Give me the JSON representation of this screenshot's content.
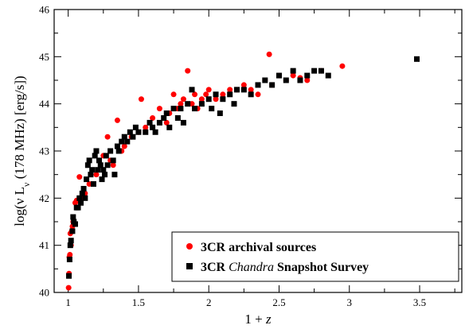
{
  "chart_data": {
    "type": "scatter",
    "xlabel": "1 + z",
    "ylabel": "log(ν L_ν (178 MHz) [erg/s])",
    "xlim": [
      0.9,
      3.8
    ],
    "ylim": [
      40,
      46
    ],
    "x_ticks": [
      1,
      1.5,
      2,
      2.5,
      3,
      3.5
    ],
    "x_tick_labels": [
      "1",
      "1.5",
      "2",
      "2.5",
      "3",
      "3.5"
    ],
    "y_ticks": [
      40,
      41,
      42,
      43,
      44,
      45,
      46
    ],
    "y_tick_labels": [
      "40",
      "41",
      "42",
      "43",
      "44",
      "45",
      "46"
    ],
    "grid": false,
    "legend": {
      "position": "bottom-right",
      "entries": [
        {
          "series": 0,
          "text": "3CR archival sources",
          "marker": "circle"
        },
        {
          "series": 1,
          "text_parts": [
            "3CR ",
            "Chandra",
            " Snapshot Survey"
          ],
          "italic_part": 1,
          "marker": "square"
        }
      ]
    },
    "series": [
      {
        "name": "3CR archival sources",
        "marker": "circle",
        "color": "#ff0000",
        "points": [
          [
            1.003,
            40.1
          ],
          [
            1.006,
            40.4
          ],
          [
            1.008,
            40.75
          ],
          [
            1.012,
            40.8
          ],
          [
            1.015,
            41.25
          ],
          [
            1.02,
            41.0
          ],
          [
            1.025,
            41.3
          ],
          [
            1.03,
            41.4
          ],
          [
            1.035,
            41.5
          ],
          [
            1.04,
            41.45
          ],
          [
            1.05,
            41.9
          ],
          [
            1.06,
            41.95
          ],
          [
            1.07,
            41.95
          ],
          [
            1.08,
            42.45
          ],
          [
            1.1,
            42.0
          ],
          [
            1.12,
            42.1
          ],
          [
            1.15,
            42.3
          ],
          [
            1.2,
            42.5
          ],
          [
            1.25,
            42.9
          ],
          [
            1.28,
            43.3
          ],
          [
            1.3,
            42.8
          ],
          [
            1.32,
            42.7
          ],
          [
            1.35,
            43.65
          ],
          [
            1.38,
            43.0
          ],
          [
            1.4,
            43.1
          ],
          [
            1.45,
            43.3
          ],
          [
            1.5,
            43.4
          ],
          [
            1.52,
            44.1
          ],
          [
            1.55,
            43.5
          ],
          [
            1.6,
            43.7
          ],
          [
            1.65,
            43.9
          ],
          [
            1.7,
            43.6
          ],
          [
            1.72,
            43.8
          ],
          [
            1.75,
            44.2
          ],
          [
            1.78,
            43.9
          ],
          [
            1.8,
            44.0
          ],
          [
            1.82,
            44.1
          ],
          [
            1.85,
            44.7
          ],
          [
            1.88,
            44.0
          ],
          [
            1.9,
            44.2
          ],
          [
            1.92,
            43.9
          ],
          [
            1.95,
            44.1
          ],
          [
            1.98,
            44.2
          ],
          [
            2.0,
            44.3
          ],
          [
            2.05,
            44.1
          ],
          [
            2.1,
            44.2
          ],
          [
            2.15,
            44.3
          ],
          [
            2.2,
            44.3
          ],
          [
            2.25,
            44.4
          ],
          [
            2.3,
            44.3
          ],
          [
            2.35,
            44.2
          ],
          [
            2.4,
            44.5
          ],
          [
            2.43,
            45.05
          ],
          [
            2.45,
            44.4
          ],
          [
            2.5,
            44.6
          ],
          [
            2.55,
            44.5
          ],
          [
            2.6,
            44.6
          ],
          [
            2.65,
            44.55
          ],
          [
            2.7,
            44.5
          ],
          [
            2.8,
            44.7
          ],
          [
            2.95,
            44.8
          ]
        ]
      },
      {
        "name": "3CR Chandra Snapshot Survey",
        "marker": "square",
        "color": "#000000",
        "points": [
          [
            1.005,
            40.35
          ],
          [
            1.01,
            40.7
          ],
          [
            1.015,
            41.0
          ],
          [
            1.02,
            41.1
          ],
          [
            1.03,
            41.3
          ],
          [
            1.035,
            41.6
          ],
          [
            1.04,
            41.5
          ],
          [
            1.05,
            41.45
          ],
          [
            1.06,
            41.8
          ],
          [
            1.07,
            41.8
          ],
          [
            1.08,
            42.0
          ],
          [
            1.09,
            41.9
          ],
          [
            1.1,
            42.1
          ],
          [
            1.11,
            42.2
          ],
          [
            1.12,
            42.0
          ],
          [
            1.13,
            42.4
          ],
          [
            1.14,
            42.7
          ],
          [
            1.15,
            42.8
          ],
          [
            1.16,
            42.5
          ],
          [
            1.17,
            42.6
          ],
          [
            1.18,
            42.3
          ],
          [
            1.19,
            42.9
          ],
          [
            1.2,
            43.0
          ],
          [
            1.21,
            42.6
          ],
          [
            1.22,
            42.8
          ],
          [
            1.23,
            42.7
          ],
          [
            1.24,
            42.4
          ],
          [
            1.25,
            42.6
          ],
          [
            1.26,
            42.5
          ],
          [
            1.27,
            42.9
          ],
          [
            1.28,
            42.7
          ],
          [
            1.3,
            43.0
          ],
          [
            1.32,
            42.8
          ],
          [
            1.33,
            42.5
          ],
          [
            1.35,
            43.1
          ],
          [
            1.36,
            43.0
          ],
          [
            1.38,
            43.2
          ],
          [
            1.4,
            43.3
          ],
          [
            1.42,
            43.2
          ],
          [
            1.44,
            43.4
          ],
          [
            1.46,
            43.3
          ],
          [
            1.48,
            43.5
          ],
          [
            1.5,
            43.4
          ],
          [
            1.55,
            43.4
          ],
          [
            1.58,
            43.6
          ],
          [
            1.6,
            43.5
          ],
          [
            1.62,
            43.4
          ],
          [
            1.65,
            43.6
          ],
          [
            1.68,
            43.7
          ],
          [
            1.7,
            43.8
          ],
          [
            1.72,
            43.5
          ],
          [
            1.75,
            43.9
          ],
          [
            1.78,
            43.7
          ],
          [
            1.8,
            43.9
          ],
          [
            1.82,
            43.6
          ],
          [
            1.85,
            44.0
          ],
          [
            1.88,
            44.3
          ],
          [
            1.9,
            43.9
          ],
          [
            1.95,
            44.0
          ],
          [
            2.0,
            44.1
          ],
          [
            2.02,
            43.9
          ],
          [
            2.05,
            44.2
          ],
          [
            2.08,
            43.8
          ],
          [
            2.1,
            44.1
          ],
          [
            2.15,
            44.2
          ],
          [
            2.18,
            44.0
          ],
          [
            2.2,
            44.3
          ],
          [
            2.25,
            44.3
          ],
          [
            2.3,
            44.2
          ],
          [
            2.35,
            44.4
          ],
          [
            2.4,
            44.5
          ],
          [
            2.45,
            44.4
          ],
          [
            2.5,
            44.6
          ],
          [
            2.55,
            44.5
          ],
          [
            2.6,
            44.7
          ],
          [
            2.65,
            44.5
          ],
          [
            2.7,
            44.6
          ],
          [
            2.75,
            44.7
          ],
          [
            2.8,
            44.7
          ],
          [
            2.85,
            44.6
          ],
          [
            3.48,
            44.95
          ]
        ]
      }
    ]
  }
}
